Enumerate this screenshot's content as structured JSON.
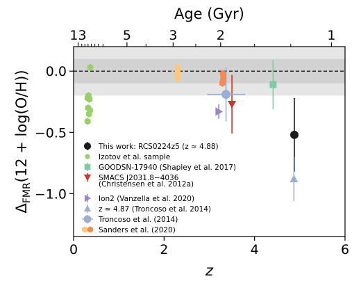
{
  "chart_data": {
    "type": "scatter",
    "xlabel": "z",
    "ylabel": "Δ",
    "ylabel_sub": "FMR",
    "ylabel_rest": "(12 + log(O/H))",
    "top_axis_label": "Age (Gyr)",
    "xlim": [
      0,
      6
    ],
    "ylim": [
      -1.35,
      0.2
    ],
    "x_ticks": [
      0,
      2,
      4,
      6
    ],
    "x_tick_labels": [
      "0",
      "2",
      "4",
      "6"
    ],
    "y_ticks": [
      0.0,
      -0.5,
      -1.0
    ],
    "y_tick_labels": [
      "0.0",
      "−0.5",
      "−1.0"
    ],
    "top_ticks": [
      {
        "label": "13",
        "z": 0.1
      },
      {
        "label": "5",
        "z": 1.18
      },
      {
        "label": "3",
        "z": 2.2
      },
      {
        "label": "2",
        "z": 3.25
      },
      {
        "label": "1",
        "z": 5.7
      }
    ],
    "top_minor_ticks_z": [
      0.18,
      0.25,
      0.32,
      0.39,
      0.47,
      0.55,
      0.65,
      1.6,
      2.7,
      4.0,
      4.8
    ],
    "reference_line_y": 0.0,
    "bands": [
      {
        "y0": -0.1,
        "y1": 0.1,
        "color": "#d2d2d2"
      },
      {
        "y0": -0.2,
        "y1": 0.2,
        "color": "#e6e6e6"
      }
    ],
    "legend_position": "lower-left",
    "series": [
      {
        "name": "This work: RCS0224z5 (z ≃ 4.88)",
        "marker": "circle",
        "color": "#1c1c1c",
        "points": [
          {
            "x": 4.88,
            "y": -0.52,
            "yerr": 0.3
          }
        ]
      },
      {
        "name": "Izotov et al. sample",
        "marker": "hexagon",
        "color": "#9ad06b",
        "points": [
          {
            "x": 0.37,
            "y": 0.03
          },
          {
            "x": 0.33,
            "y": -0.2
          },
          {
            "x": 0.31,
            "y": -0.22
          },
          {
            "x": 0.35,
            "y": -0.23
          },
          {
            "x": 0.32,
            "y": -0.3
          },
          {
            "x": 0.36,
            "y": -0.32
          },
          {
            "x": 0.34,
            "y": -0.35
          },
          {
            "x": 0.31,
            "y": -0.41
          }
        ]
      },
      {
        "name": "GOODSN-17940 (Shapley et al. 2017)",
        "marker": "square",
        "color": "#7fcba5",
        "points": [
          {
            "x": 4.41,
            "y": -0.11,
            "yerr": 0.2
          }
        ]
      },
      {
        "name": "SMACS J2031.8−4036",
        "name_line2": "(Christensen et al. 2012a)",
        "marker": "triangle-down",
        "color": "#d6302a",
        "points": [
          {
            "x": 3.5,
            "y": -0.27,
            "yerr": 0.24
          }
        ]
      },
      {
        "name": "Ion2 (Vanzella et al. 2020)",
        "marker": "triangle-right",
        "color": "#9b82c9",
        "points": [
          {
            "x": 3.21,
            "y": -0.33,
            "yerr": 0.06
          }
        ]
      },
      {
        "name": "z ≃ 4.87 (Troncoso et al. 2014)",
        "marker": "triangle-up",
        "color": "#9cafd3",
        "points": [
          {
            "x": 4.87,
            "y": -0.88,
            "yerr": 0.18
          }
        ]
      },
      {
        "name": "Troncoso et al. (2014)",
        "marker": "circle-large",
        "color": "#9cafd3",
        "points": [
          {
            "x": 3.37,
            "y": -0.19,
            "xerr": 0.42,
            "yerr": 0.22
          }
        ]
      },
      {
        "name": "Sanders et al. (2020)",
        "marker": "hexagon-pair",
        "color": "#fcc880",
        "color2": "#f58a55",
        "points": [
          {
            "x": 2.3,
            "y": 0.03,
            "c": 1
          },
          {
            "x": 2.3,
            "y": 0.0,
            "c": 1
          },
          {
            "x": 2.31,
            "y": -0.03,
            "c": 1
          },
          {
            "x": 2.29,
            "y": -0.06,
            "c": 1
          },
          {
            "x": 3.3,
            "y": -0.02,
            "c": 2
          },
          {
            "x": 3.31,
            "y": -0.05,
            "c": 2
          },
          {
            "x": 3.3,
            "y": -0.08,
            "c": 2
          },
          {
            "x": 3.29,
            "y": -0.1,
            "c": 2
          }
        ]
      }
    ]
  }
}
